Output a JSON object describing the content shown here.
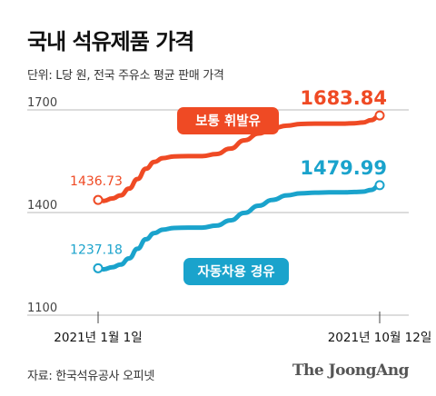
{
  "title": "국내 석유제품 가격",
  "unit_note": "단위: L당 원, 전국 주유소 평균 판매 가격",
  "source": "자료: 한국석유공사 오피넷",
  "brand": "The JoongAng",
  "colors": {
    "gasoline": "#ef4a24",
    "diesel": "#1aa3cc",
    "grid": "#b8b8b8",
    "text": "#111111"
  },
  "chart_data": {
    "type": "line",
    "title": "국내 석유제품 가격",
    "ylabel": "",
    "xlabel": "",
    "ylim": [
      1100,
      1750
    ],
    "y_ticks": [
      1100,
      1400,
      1700
    ],
    "y_tick_labels": [
      "1100",
      "1400",
      "1700"
    ],
    "x_tick_labels": [
      "2021년 1월 1일",
      "2021년 10월 12일"
    ],
    "grid": true,
    "series": [
      {
        "name": "보통 휘발유",
        "color": "#ef4a24",
        "start_label": "1436.73",
        "end_label": "1683.84",
        "points": [
          [
            0,
            1436.73
          ],
          [
            0.02,
            1434
          ],
          [
            0.05,
            1441
          ],
          [
            0.08,
            1450
          ],
          [
            0.11,
            1470
          ],
          [
            0.14,
            1498
          ],
          [
            0.17,
            1528
          ],
          [
            0.2,
            1548
          ],
          [
            0.23,
            1559
          ],
          [
            0.27,
            1564
          ],
          [
            0.32,
            1565
          ],
          [
            0.37,
            1565
          ],
          [
            0.42,
            1571
          ],
          [
            0.47,
            1587
          ],
          [
            0.52,
            1611
          ],
          [
            0.57,
            1631
          ],
          [
            0.62,
            1646
          ],
          [
            0.67,
            1654
          ],
          [
            0.72,
            1659
          ],
          [
            0.77,
            1660
          ],
          [
            0.82,
            1660
          ],
          [
            0.87,
            1660
          ],
          [
            0.91,
            1661
          ],
          [
            0.94,
            1663
          ],
          [
            0.97,
            1670
          ],
          [
            1.0,
            1683.84
          ]
        ]
      },
      {
        "name": "자동차용 경유",
        "color": "#1aa3cc",
        "start_label": "1237.18",
        "end_label": "1479.99",
        "points": [
          [
            0,
            1237.18
          ],
          [
            0.02,
            1234
          ],
          [
            0.05,
            1240
          ],
          [
            0.08,
            1248
          ],
          [
            0.11,
            1266
          ],
          [
            0.14,
            1294
          ],
          [
            0.17,
            1322
          ],
          [
            0.2,
            1340
          ],
          [
            0.23,
            1350
          ],
          [
            0.27,
            1355
          ],
          [
            0.32,
            1356
          ],
          [
            0.37,
            1356
          ],
          [
            0.42,
            1362
          ],
          [
            0.47,
            1377
          ],
          [
            0.52,
            1399
          ],
          [
            0.57,
            1420
          ],
          [
            0.62,
            1437
          ],
          [
            0.67,
            1450
          ],
          [
            0.72,
            1456
          ],
          [
            0.77,
            1458
          ],
          [
            0.82,
            1459
          ],
          [
            0.87,
            1459
          ],
          [
            0.91,
            1460
          ],
          [
            0.94,
            1461
          ],
          [
            0.97,
            1466
          ],
          [
            1.0,
            1479.99
          ]
        ]
      }
    ]
  }
}
